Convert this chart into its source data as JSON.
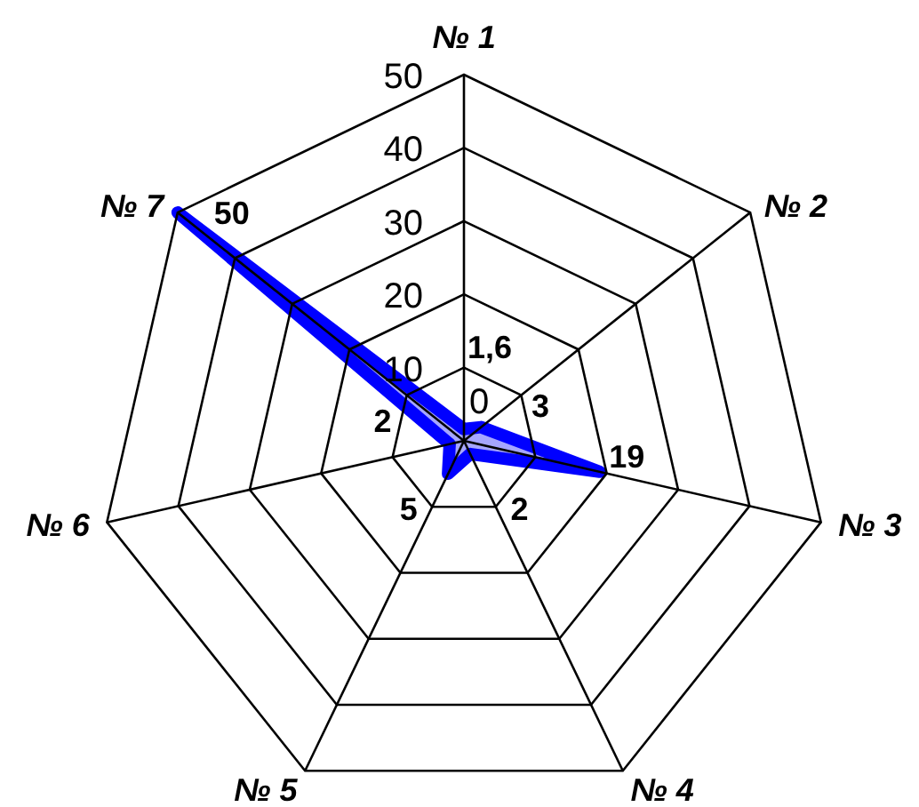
{
  "chart_data": {
    "type": "radar",
    "categories": [
      "№ 1",
      "№ 2",
      "№ 3",
      "№ 4",
      "№ 5",
      "№ 6",
      "№ 7"
    ],
    "series": [
      {
        "color": "#0000ff",
        "values": [
          1.6,
          3,
          19,
          2,
          5,
          2,
          50
        ],
        "value_labels": [
          "1,6",
          "3",
          "19",
          "2",
          "5",
          "2",
          "50"
        ]
      }
    ],
    "ylim": [
      0,
      50
    ],
    "yticks": [
      0,
      10,
      20,
      30,
      40,
      50
    ],
    "grid": true,
    "legend": false,
    "marker": "none"
  }
}
